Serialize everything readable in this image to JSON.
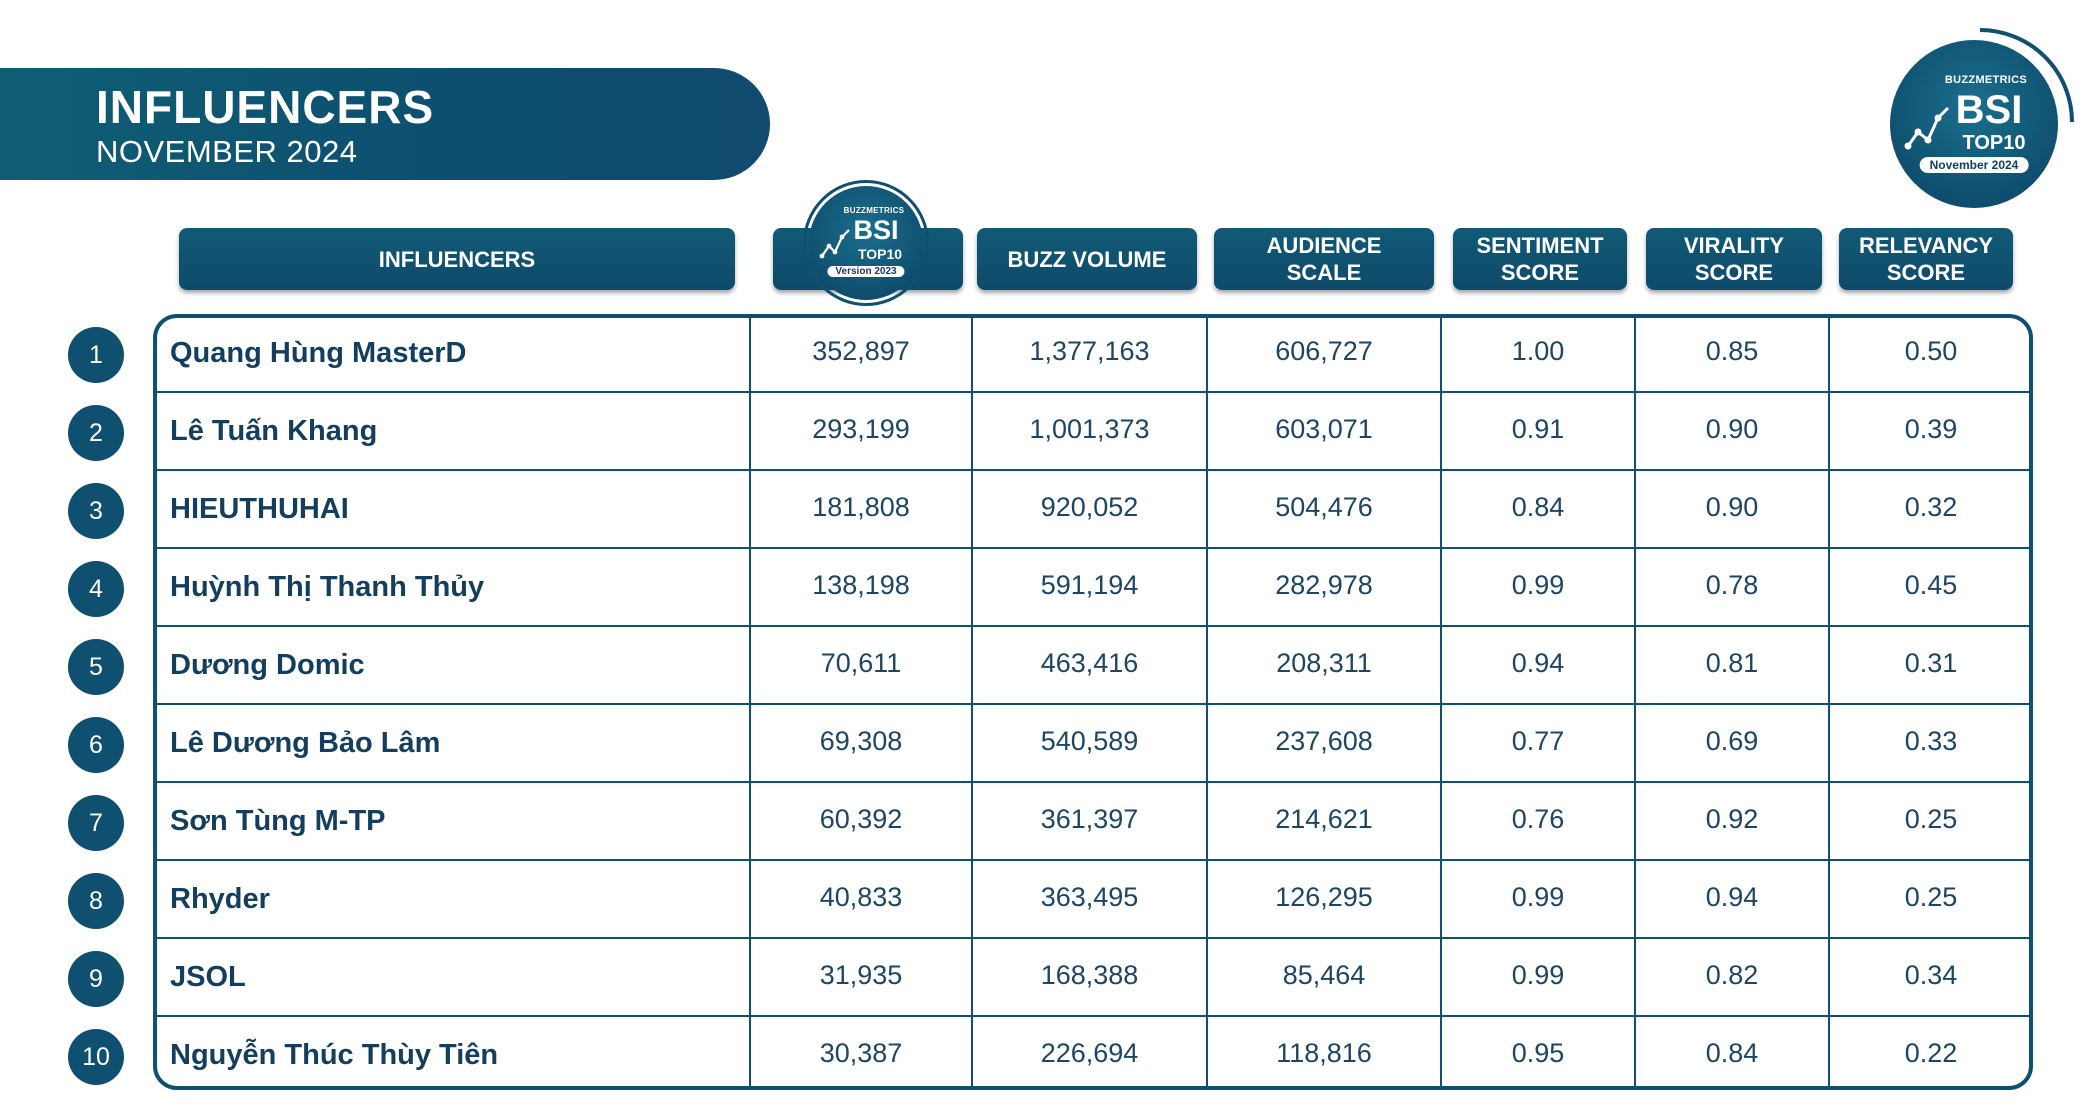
{
  "header": {
    "title": "INFLUENCERS",
    "subtitle": "NOVEMBER 2024"
  },
  "badge_main": {
    "brand": "BUZZMETRICS",
    "bsi": "BSI",
    "top": "TOP10",
    "period": "November 2024"
  },
  "badge_column": {
    "brand": "BUZZMETRICS",
    "bsi": "BSI",
    "top": "TOP10",
    "version": "Version 2023"
  },
  "colors": {
    "primary": "#0f4f6f",
    "banner": "#0f5e74",
    "text": "#133e5e"
  },
  "chart_data": {
    "type": "table",
    "title": "INFLUENCERS",
    "subtitle": "NOVEMBER 2024",
    "columns": [
      "INFLUENCERS",
      "BSI",
      "BUZZ VOLUME",
      "AUDIENCE SCALE",
      "SENTIMENT SCORE",
      "VIRALITY SCORE",
      "RELEVANCY SCORE"
    ],
    "column_headers": {
      "influencers": "INFLUENCERS",
      "buzz_volume": "BUZZ VOLUME",
      "audience_scale_1": "AUDIENCE",
      "audience_scale_2": "SCALE",
      "sentiment_score_1": "SENTIMENT",
      "sentiment_score_2": "SCORE",
      "virality_score_1": "VIRALITY",
      "virality_score_2": "SCORE",
      "relevancy_score_1": "RELEVANCY",
      "relevancy_score_2": "SCORE"
    },
    "rows": [
      {
        "rank": "1",
        "name": "Quang Hùng MasterD",
        "bsi": "352,897",
        "buzz": "1,377,163",
        "audience": "606,727",
        "sentiment": "1.00",
        "virality": "0.85",
        "relevancy": "0.50"
      },
      {
        "rank": "2",
        "name": "Lê Tuấn Khang",
        "bsi": "293,199",
        "buzz": "1,001,373",
        "audience": "603,071",
        "sentiment": "0.91",
        "virality": "0.90",
        "relevancy": "0.39"
      },
      {
        "rank": "3",
        "name": "HIEUTHUHAI",
        "bsi": "181,808",
        "buzz": "920,052",
        "audience": "504,476",
        "sentiment": "0.84",
        "virality": "0.90",
        "relevancy": "0.32"
      },
      {
        "rank": "4",
        "name": "Huỳnh Thị Thanh Thủy",
        "bsi": "138,198",
        "buzz": "591,194",
        "audience": "282,978",
        "sentiment": "0.99",
        "virality": "0.78",
        "relevancy": "0.45"
      },
      {
        "rank": "5",
        "name": "Dương Domic",
        "bsi": "70,611",
        "buzz": "463,416",
        "audience": "208,311",
        "sentiment": "0.94",
        "virality": "0.81",
        "relevancy": "0.31"
      },
      {
        "rank": "6",
        "name": "Lê Dương Bảo Lâm",
        "bsi": "69,308",
        "buzz": "540,589",
        "audience": "237,608",
        "sentiment": "0.77",
        "virality": "0.69",
        "relevancy": "0.33"
      },
      {
        "rank": "7",
        "name": "Sơn Tùng M-TP",
        "bsi": "60,392",
        "buzz": "361,397",
        "audience": "214,621",
        "sentiment": "0.76",
        "virality": "0.92",
        "relevancy": "0.25"
      },
      {
        "rank": "8",
        "name": "Rhyder",
        "bsi": "40,833",
        "buzz": "363,495",
        "audience": "126,295",
        "sentiment": "0.99",
        "virality": "0.94",
        "relevancy": "0.25"
      },
      {
        "rank": "9",
        "name": "JSOL",
        "bsi": "31,935",
        "buzz": "168,388",
        "audience": "85,464",
        "sentiment": "0.99",
        "virality": "0.82",
        "relevancy": "0.34"
      },
      {
        "rank": "10",
        "name": "Nguyễn Thúc Thùy Tiên",
        "bsi": "30,387",
        "buzz": "226,694",
        "audience": "118,816",
        "sentiment": "0.95",
        "virality": "0.84",
        "relevancy": "0.22"
      }
    ]
  }
}
